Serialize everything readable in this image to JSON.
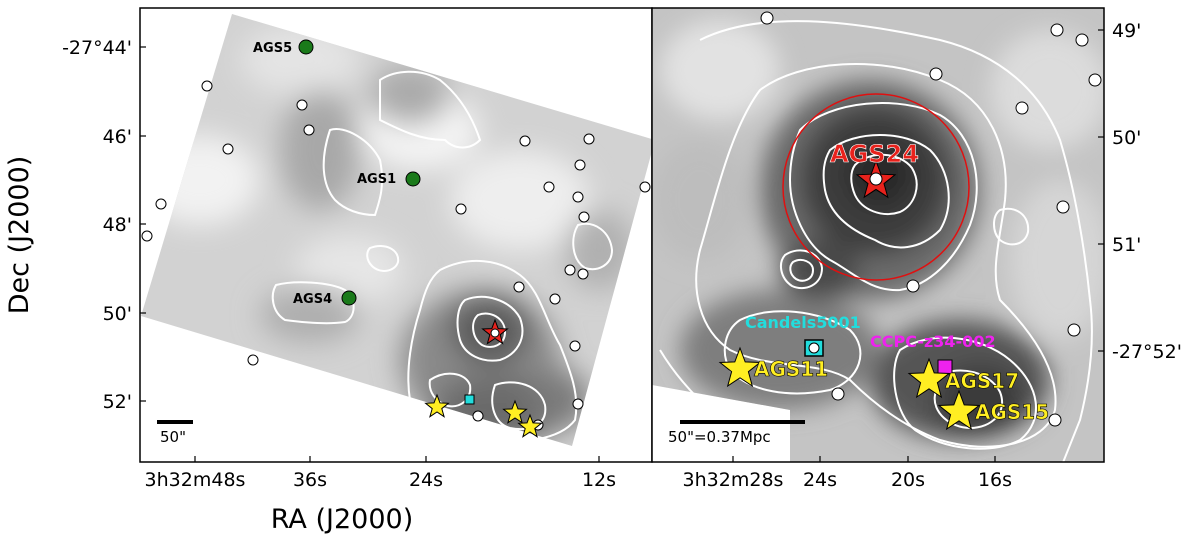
{
  "chart_data": [
    {
      "type": "scatter",
      "panel": "left",
      "xlabel": "RA (J2000)",
      "ylabel": "Dec (J2000)",
      "x_ticks": [
        {
          "label": "3h32m48s",
          "sup": "h",
          "value": "3:32:48"
        },
        {
          "label": "36s",
          "value": "3:32:36"
        },
        {
          "label": "24s",
          "value": "3:32:24"
        },
        {
          "label": "12s",
          "value": "3:32:12"
        }
      ],
      "y_ticks": [
        {
          "label": "-27°44'",
          "value": "-27:44"
        },
        {
          "label": "46'",
          "value": "-27:46"
        },
        {
          "label": "48'",
          "value": "-27:48"
        },
        {
          "label": "50'",
          "value": "-27:50"
        },
        {
          "label": "52'",
          "value": "-27:52"
        }
      ],
      "scalebar_label": "50\"",
      "labeled_sources": [
        {
          "name": "AGS5",
          "color": "#1a7a1a"
        },
        {
          "name": "AGS1",
          "color": "#1a7a1a"
        },
        {
          "name": "AGS4",
          "color": "#1a7a1a"
        }
      ],
      "marker_colors": {
        "star_yellow": "#ffee22",
        "star_red": "#e8221c",
        "circle": "#ffffff",
        "green": "#1a7a1a"
      }
    },
    {
      "type": "scatter",
      "panel": "right",
      "x_ticks": [
        {
          "label": "3h32m28s",
          "value": "3:32:28"
        },
        {
          "label": "24s",
          "value": "3:32:24"
        },
        {
          "label": "20s",
          "value": "3:32:20"
        },
        {
          "label": "16s",
          "value": "3:32:16"
        }
      ],
      "y_ticks_right": [
        {
          "label": "49'",
          "value": "-27:49"
        },
        {
          "label": "50'",
          "value": "-27:50"
        },
        {
          "label": "51'",
          "value": "-27:51"
        },
        {
          "label": "-27°52'",
          "value": "-27:52"
        }
      ],
      "scalebar_label": "50\"=0.37Mpc",
      "labeled_sources": [
        {
          "name": "AGS24",
          "color": "#e8221c"
        },
        {
          "name": "Candels5001",
          "color": "#22dddd"
        },
        {
          "name": "CCPC-z34-002",
          "color": "#ee22ee"
        },
        {
          "name": "AGS11",
          "color": "#ffee22"
        },
        {
          "name": "AGS17",
          "color": "#ffee22"
        },
        {
          "name": "AGS15",
          "color": "#ffee22"
        }
      ],
      "circle_color": "#e01010"
    }
  ]
}
